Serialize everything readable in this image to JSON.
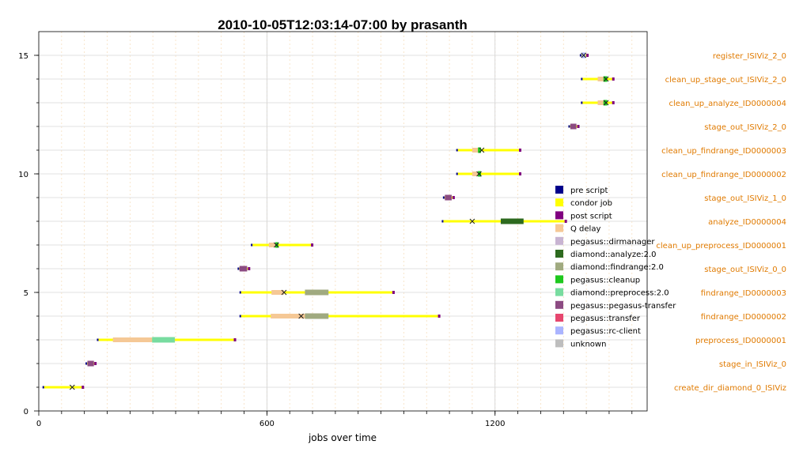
{
  "chart_data": {
    "type": "gantt",
    "title": "2010-10-05T12:03:14-07:00 by prasanth",
    "xlabel": "jobs over time",
    "ylabel": "",
    "xlim": [
      0,
      1600
    ],
    "ylim": [
      0,
      16
    ],
    "x_ticks": [
      0,
      600,
      1200
    ],
    "y_ticks": [
      0,
      5,
      10,
      15
    ],
    "legend_position": "right",
    "legend": [
      {
        "name": "pre script",
        "color": "#00008b"
      },
      {
        "name": "condor job",
        "color": "#ffff00"
      },
      {
        "name": "post script",
        "color": "#800080"
      },
      {
        "name": "Q delay",
        "color": "#f5c896"
      },
      {
        "name": "pegasus::dirmanager",
        "color": "#c8b4d2"
      },
      {
        "name": "diamond::analyze:2.0",
        "color": "#2d6a1f"
      },
      {
        "name": "diamond::findrange:2.0",
        "color": "#a0aa80"
      },
      {
        "name": "pegasus::cleanup",
        "color": "#1ec81e"
      },
      {
        "name": "diamond::preprocess:2.0",
        "color": "#78dca0"
      },
      {
        "name": "pegasus::pegasus-transfer",
        "color": "#8c4b82"
      },
      {
        "name": "pegasus::transfer",
        "color": "#e6466e"
      },
      {
        "name": "pegasus::rc-client",
        "color": "#aab4ff"
      },
      {
        "name": "unknown",
        "color": "#bebebe"
      }
    ],
    "jobs": [
      {
        "y": 1,
        "name": "create_dir_diamond_0_ISIViz",
        "start": 12,
        "end": 115,
        "qdelay": null,
        "exec": null,
        "exec_type": null,
        "marker": 88
      },
      {
        "y": 2,
        "name": "stage_in_ISIViz_0",
        "start": 125,
        "end": 148,
        "qdelay": null,
        "exec": [
          128,
          145
        ],
        "exec_type": "pegasus::pegasus-transfer",
        "marker": null
      },
      {
        "y": 3,
        "name": "preprocess_ID0000001",
        "start": 155,
        "end": 515,
        "qdelay": [
          195,
          298
        ],
        "exec": [
          298,
          358
        ],
        "exec_type": "diamond::preprocess:2.0",
        "marker": null
      },
      {
        "y": 4,
        "name": "findrange_ID0000002",
        "start": 530,
        "end": 1052,
        "qdelay": [
          610,
          700
        ],
        "exec": [
          700,
          762
        ],
        "exec_type": "diamond::findrange:2.0",
        "marker": 690
      },
      {
        "y": 5,
        "name": "findrange_ID0000003",
        "start": 530,
        "end": 932,
        "qdelay": [
          612,
          645
        ],
        "exec": [
          700,
          762
        ],
        "exec_type": "diamond::findrange:2.0",
        "marker": 645
      },
      {
        "y": 6,
        "name": "stage_out_ISIViz_0_0",
        "start": 525,
        "end": 552,
        "qdelay": null,
        "exec": [
          528,
          548
        ],
        "exec_type": "pegasus::pegasus-transfer",
        "marker": null
      },
      {
        "y": 7,
        "name": "clean_up_preprocess_ID0000001",
        "start": 560,
        "end": 718,
        "qdelay": [
          605,
          622
        ],
        "exec": [
          622,
          630
        ],
        "exec_type": "pegasus::cleanup",
        "marker": 625
      },
      {
        "y": 8,
        "name": "analyze_ID0000004",
        "start": 1062,
        "end": 1385,
        "qdelay": null,
        "exec": [
          1215,
          1275
        ],
        "exec_type": "diamond::analyze:2.0",
        "marker": 1140
      },
      {
        "y": 9,
        "name": "stage_out_ISIViz_1_0",
        "start": 1065,
        "end": 1090,
        "qdelay": null,
        "exec": [
          1068,
          1086
        ],
        "exec_type": "pegasus::pegasus-transfer",
        "marker": null
      },
      {
        "y": 10,
        "name": "clean_up_findrange_ID0000002",
        "start": 1100,
        "end": 1265,
        "qdelay": [
          1140,
          1155
        ],
        "exec": [
          1155,
          1163
        ],
        "exec_type": "pegasus::cleanup",
        "marker": 1158
      },
      {
        "y": 11,
        "name": "clean_up_findrange_ID0000003",
        "start": 1100,
        "end": 1265,
        "qdelay": [
          1140,
          1155
        ],
        "exec": [
          1155,
          1163
        ],
        "exec_type": "pegasus::cleanup",
        "marker": 1165
      },
      {
        "y": 12,
        "name": "stage_out_ISIViz_2_0",
        "start": 1395,
        "end": 1418,
        "qdelay": null,
        "exec": [
          1398,
          1414
        ],
        "exec_type": "pegasus::pegasus-transfer",
        "marker": null
      },
      {
        "y": 13,
        "name": "clean_up_analyze_ID0000004",
        "start": 1428,
        "end": 1510,
        "qdelay": [
          1470,
          1485
        ],
        "exec": [
          1485,
          1495
        ],
        "exec_type": "pegasus::cleanup",
        "marker": 1492
      },
      {
        "y": 14,
        "name": "clean_up_stage_out_ISIViz_2_0",
        "start": 1428,
        "end": 1510,
        "qdelay": [
          1470,
          1485
        ],
        "exec": [
          1485,
          1495
        ],
        "exec_type": "pegasus::cleanup",
        "marker": 1492
      },
      {
        "y": 15,
        "name": "register_ISIViz_2_0",
        "start": 1425,
        "end": 1442,
        "qdelay": null,
        "exec": [
          1428,
          1438
        ],
        "exec_type": "pegasus::rc-client",
        "marker": 1433
      }
    ]
  }
}
